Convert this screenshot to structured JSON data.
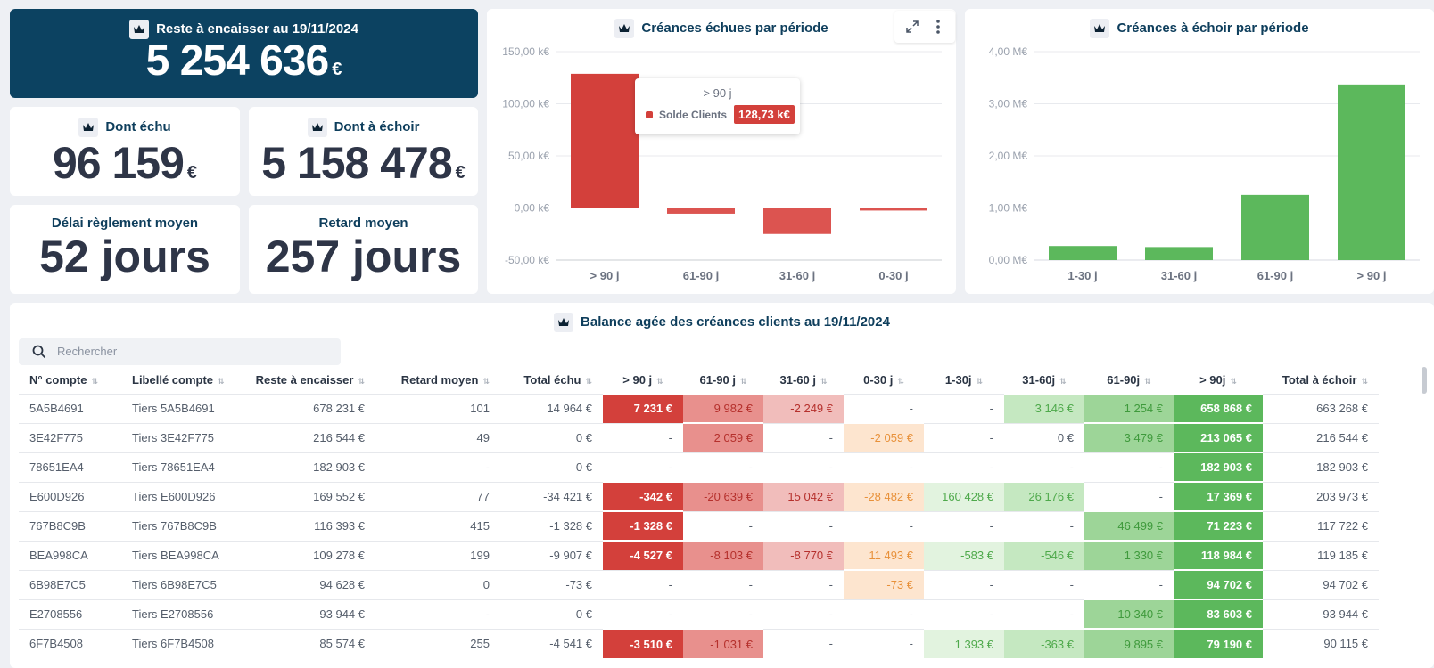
{
  "kpis": {
    "main": {
      "title": "Reste à encaisser au 19/11/2024",
      "value": "5 254 636",
      "currency": "€"
    },
    "echu": {
      "title": "Dont échu",
      "value": "96 159",
      "currency": "€"
    },
    "echoir": {
      "title": "Dont à échoir",
      "value": "5 158 478",
      "currency": "€"
    },
    "delai": {
      "title": "Délai règlement moyen",
      "value": "52 jours"
    },
    "retard": {
      "title": "Retard moyen",
      "value": "257 jours"
    }
  },
  "colors": {
    "red": "#d3403b",
    "green": "#5cb85c",
    "navy": "#0c4261"
  },
  "chart_data": [
    {
      "type": "bar",
      "title": "Créances échues par période",
      "categories": [
        "> 90 j",
        "61-90 j",
        "31-60 j",
        "0-30 j"
      ],
      "series": [
        {
          "name": "Solde Clients",
          "values": [
            128.73,
            -5.5,
            -25,
            -2.5
          ]
        }
      ],
      "ylim": [
        -50,
        150
      ],
      "yticks": [
        "150,00 k€",
        "100,00 k€",
        "50,00 k€",
        "0,00 k€",
        "-50,00 k€"
      ],
      "tooltip": {
        "title": "> 90 j",
        "series": "Solde Clients",
        "value": "128,73 k€"
      },
      "grid": true
    },
    {
      "type": "bar",
      "title": "Créances à échoir par période",
      "categories": [
        "1-30 j",
        "31-60 j",
        "61-90 j",
        "> 90 j"
      ],
      "series": [
        {
          "values": [
            0.27,
            0.25,
            1.25,
            3.37
          ]
        }
      ],
      "ylim": [
        0,
        4
      ],
      "yticks": [
        "4,00 M€",
        "3,00 M€",
        "2,00 M€",
        "1,00 M€",
        "0,00 M€"
      ],
      "grid": true
    }
  ],
  "table": {
    "title": "Balance agée des créances clients au 19/11/2024",
    "search_placeholder": "Rechercher",
    "columns": [
      "N° compte",
      "Libellé compte",
      "Reste à encaisser",
      "Retard moyen",
      "Total échu",
      "> 90 j",
      "61-90 j",
      "31-60 j",
      "0-30 j",
      "1-30j",
      "31-60j",
      "61-90j",
      "> 90j",
      "Total à échoir"
    ],
    "rows": [
      [
        "5A5B4691",
        "Tiers 5A5B4691",
        "678 231 €",
        "101",
        "14 964 €",
        "7 231 €",
        "9 982 €",
        "-2 249 €",
        "-",
        "-",
        "3 146 €",
        "1 254 €",
        "658 868 €",
        "663 268 €"
      ],
      [
        "3E42F775",
        "Tiers 3E42F775",
        "216 544 €",
        "49",
        "0 €",
        "-",
        "2 059 €",
        "-",
        "-2 059 €",
        "-",
        "0 €",
        "3 479 €",
        "213 065 €",
        "216 544 €"
      ],
      [
        "78651EA4",
        "Tiers 78651EA4",
        "182 903 €",
        "-",
        "0 €",
        "-",
        "-",
        "-",
        "-",
        "-",
        "-",
        "-",
        "182 903 €",
        "182 903 €"
      ],
      [
        "E600D926",
        "Tiers E600D926",
        "169 552 €",
        "77",
        "-34 421 €",
        "-342 €",
        "-20 639 €",
        "15 042 €",
        "-28 482 €",
        "160 428 €",
        "26 176 €",
        "-",
        "17 369 €",
        "203 973 €"
      ],
      [
        "767B8C9B",
        "Tiers 767B8C9B",
        "116 393 €",
        "415",
        "-1 328 €",
        "-1 328 €",
        "-",
        "-",
        "-",
        "-",
        "-",
        "46 499 €",
        "71 223 €",
        "117 722 €"
      ],
      [
        "BEA998CA",
        "Tiers BEA998CA",
        "109 278 €",
        "199",
        "-9 907 €",
        "-4 527 €",
        "-8 103 €",
        "-8 770 €",
        "11 493 €",
        "-583 €",
        "-546 €",
        "1 330 €",
        "118 984 €",
        "119 185 €"
      ],
      [
        "6B98E7C5",
        "Tiers 6B98E7C5",
        "94 628 €",
        "0",
        "-73 €",
        "-",
        "-",
        "-",
        "-73 €",
        "-",
        "-",
        "-",
        "94 702 €",
        "94 702 €"
      ],
      [
        "E2708556",
        "Tiers E2708556",
        "93 944 €",
        "-",
        "0 €",
        "-",
        "-",
        "-",
        "-",
        "-",
        "-",
        "10 340 €",
        "83 603 €",
        "93 944 €"
      ],
      [
        "6F7B4508",
        "Tiers 6F7B4508",
        "85 574 €",
        "255",
        "-4 541 €",
        "-3 510 €",
        "-1 031 €",
        "-",
        "-",
        "1 393 €",
        "-363 €",
        "9 895 €",
        "79 190 €",
        "90 115 €"
      ]
    ]
  }
}
